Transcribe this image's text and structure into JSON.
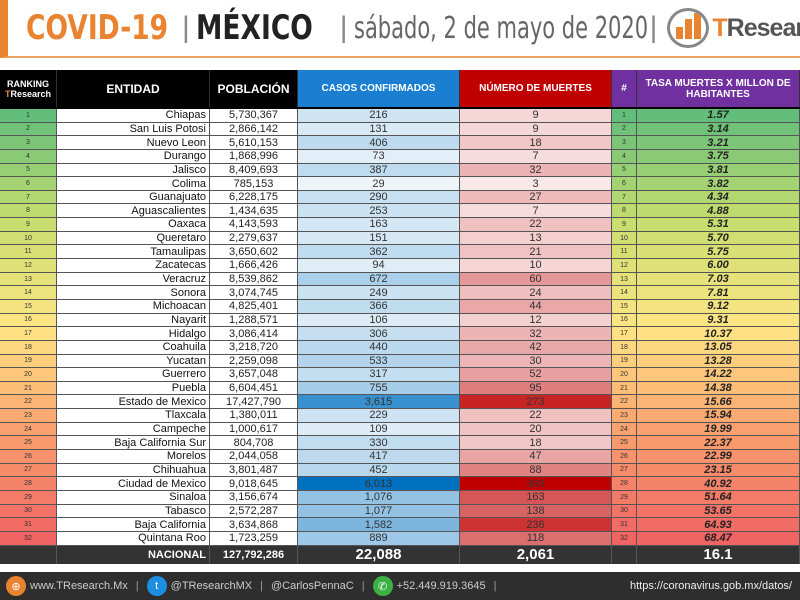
{
  "header": {
    "title1": "COVID-19",
    "title2": "MÉXICO",
    "date": "sábado, 2 de mayo de 2020",
    "logo_t": "T",
    "logo_rest": "Research"
  },
  "columns": {
    "ranking": "RANKING",
    "ranking_sub_t": "T",
    "ranking_sub": "Research",
    "entidad": "ENTIDAD",
    "poblacion": "POBLACIÓN",
    "casos": "CASOS CONFIRMADOS",
    "muertes": "NÚMERO DE MUERTES",
    "num": "#",
    "tasa": "TASA MUERTES X MILLON DE HABITANTES"
  },
  "colors": {
    "orange": "#e9832f",
    "casos_header": "#1a7fd1",
    "muertes_header": "#c00000",
    "tasa_header": "#7030a0"
  },
  "rows": [
    [
      "1",
      "Chiapas",
      "5,730,367",
      "216",
      "9",
      "1.57"
    ],
    [
      "2",
      "San Luis Potosi",
      "2,866,142",
      "131",
      "9",
      "3.14"
    ],
    [
      "3",
      "Nuevo Leon",
      "5,610,153",
      "406",
      "18",
      "3.21"
    ],
    [
      "4",
      "Durango",
      "1,868,996",
      "73",
      "7",
      "3.75"
    ],
    [
      "5",
      "Jalisco",
      "8,409,693",
      "387",
      "32",
      "3.81"
    ],
    [
      "6",
      "Colima",
      "785,153",
      "29",
      "3",
      "3.82"
    ],
    [
      "7",
      "Guanajuato",
      "6,228,175",
      "290",
      "27",
      "4.34"
    ],
    [
      "8",
      "Aguascalientes",
      "1,434,635",
      "253",
      "7",
      "4.88"
    ],
    [
      "9",
      "Oaxaca",
      "4,143,593",
      "163",
      "22",
      "5.31"
    ],
    [
      "10",
      "Queretaro",
      "2,279,637",
      "151",
      "13",
      "5.70"
    ],
    [
      "11",
      "Tamaulipas",
      "3,650,602",
      "362",
      "21",
      "5.75"
    ],
    [
      "12",
      "Zacatecas",
      "1,666,426",
      "94",
      "10",
      "6.00"
    ],
    [
      "13",
      "Veracruz",
      "8,539,862",
      "672",
      "60",
      "7.03"
    ],
    [
      "14",
      "Sonora",
      "3,074,745",
      "249",
      "24",
      "7.81"
    ],
    [
      "15",
      "Michoacan",
      "4,825,401",
      "366",
      "44",
      "9.12"
    ],
    [
      "16",
      "Nayarit",
      "1,288,571",
      "106",
      "12",
      "9.31"
    ],
    [
      "17",
      "Hidalgo",
      "3,086,414",
      "306",
      "32",
      "10.37"
    ],
    [
      "18",
      "Coahuila",
      "3,218,720",
      "440",
      "42",
      "13.05"
    ],
    [
      "19",
      "Yucatan",
      "2,259,098",
      "533",
      "30",
      "13.28"
    ],
    [
      "20",
      "Guerrero",
      "3,657,048",
      "317",
      "52",
      "14.22"
    ],
    [
      "21",
      "Puebla",
      "6,604,451",
      "755",
      "95",
      "14.38"
    ],
    [
      "22",
      "Estado de Mexico",
      "17,427,790",
      "3,615",
      "273",
      "15.66"
    ],
    [
      "23",
      "Tlaxcala",
      "1,380,011",
      "229",
      "22",
      "15.94"
    ],
    [
      "24",
      "Campeche",
      "1,000,617",
      "109",
      "20",
      "19.99"
    ],
    [
      "25",
      "Baja California Sur",
      "804,708",
      "330",
      "18",
      "22.37"
    ],
    [
      "26",
      "Morelos",
      "2,044,058",
      "417",
      "47",
      "22.99"
    ],
    [
      "27",
      "Chihuahua",
      "3,801,487",
      "452",
      "88",
      "23.15"
    ],
    [
      "28",
      "Ciudad de Mexico",
      "9,018,645",
      "6,013",
      "369",
      "40.92"
    ],
    [
      "29",
      "Sinaloa",
      "3,156,674",
      "1,076",
      "163",
      "51.64"
    ],
    [
      "30",
      "Tabasco",
      "2,572,287",
      "1,077",
      "138",
      "53.65"
    ],
    [
      "31",
      "Baja California",
      "3,634,868",
      "1,582",
      "236",
      "64.93"
    ],
    [
      "32",
      "Quintana Roo",
      "1,723,259",
      "889",
      "118",
      "68.47"
    ]
  ],
  "nacional": {
    "label": "NACIONAL",
    "poblacion": "127,792,286",
    "casos": "22,088",
    "muertes": "2,061",
    "tasa": "16.1"
  },
  "footer": {
    "web": "www.TResearch.Mx",
    "twitter": "@TResearchMX",
    "twitter2": "@CarlosPennaC",
    "whatsapp": "+52.449.919.3645",
    "source": "https://coronavirus.gob.mx/datos/"
  }
}
